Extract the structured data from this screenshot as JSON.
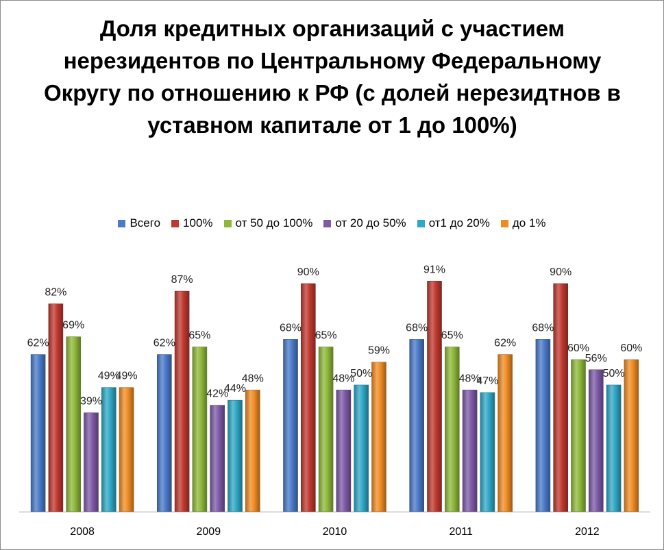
{
  "chart_data": {
    "type": "bar",
    "title": "Доля кредитных организаций с участием нерезидентов по Центральному Федеральному Округу по отношению к РФ (с долей нерезидтнов в уставном капитале от 1 до 100%)",
    "categories": [
      "2008",
      "2009",
      "2010",
      "2011",
      "2012"
    ],
    "unit": "%",
    "legend_position": "top",
    "grid": false,
    "series": [
      {
        "name": "Всего",
        "color": "#4a7ac9",
        "values": [
          62,
          62,
          68,
          68,
          68
        ],
        "labels": [
          "62%",
          "62%",
          "68%",
          "68%",
          "68%"
        ]
      },
      {
        "name": "100%",
        "color": "#c0392f",
        "values": [
          82,
          87,
          90,
          91,
          90
        ],
        "labels": [
          "82%",
          "87%",
          "90%",
          "91%",
          "90%"
        ]
      },
      {
        "name": "от 50 до 100%",
        "color": "#8fb83a",
        "values": [
          69,
          65,
          65,
          65,
          60
        ],
        "labels": [
          "69%",
          "65%",
          "65%",
          "65%",
          "60%"
        ]
      },
      {
        "name": "от 20 до 50%",
        "color": "#7e5aa8",
        "values": [
          39,
          42,
          48,
          48,
          56
        ],
        "labels": [
          "39%",
          "42%",
          "48%",
          "48%",
          "56%"
        ]
      },
      {
        "name": "от1 до 20%",
        "color": "#2fa8c6",
        "values": [
          49,
          44,
          50,
          47,
          50
        ],
        "labels": [
          "49%",
          "44%",
          "50%",
          "47%",
          "50%"
        ]
      },
      {
        "name": "до 1%",
        "color": "#f08c24",
        "values": [
          49,
          48,
          59,
          62,
          60
        ],
        "labels": [
          "49%",
          "48%",
          "59%",
          "62%",
          "60%"
        ]
      }
    ]
  }
}
